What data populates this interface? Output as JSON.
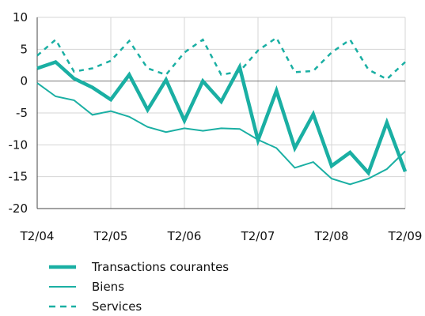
{
  "chart_data": {
    "type": "line",
    "x_tick_labels": [
      "T2/04",
      "T2/05",
      "T2/06",
      "T2/07",
      "T2/08",
      "T2/09"
    ],
    "y_tick_labels": [
      "10",
      "5",
      "0",
      "-5",
      "-10",
      "-15",
      "-20"
    ],
    "ylim": [
      -20,
      10
    ],
    "grid": "vertical-and-horizontal",
    "legend_position": "bottom",
    "color": "#1AAFA3",
    "series": [
      {
        "name": "Transactions courantes",
        "style": "thick-solid",
        "values": [
          2.0,
          3.0,
          0.4,
          -1.0,
          -2.9,
          1.0,
          -4.5,
          0.2,
          -6.2,
          0.0,
          -3.2,
          2.2,
          -9.3,
          -1.5,
          -10.5,
          -5.2,
          -13.3,
          -11.2,
          -14.4,
          -6.5,
          -14.2
        ]
      },
      {
        "name": "Biens",
        "style": "thin-solid",
        "values": [
          -0.3,
          -2.4,
          -3.0,
          -5.3,
          -4.7,
          -5.6,
          -7.2,
          -8.0,
          -7.4,
          -7.8,
          -7.4,
          -7.5,
          -9.2,
          -10.5,
          -13.6,
          -12.7,
          -15.3,
          -16.2,
          -15.3,
          -13.8,
          -11.0
        ]
      },
      {
        "name": "Services",
        "style": "dashed",
        "values": [
          4.0,
          6.5,
          1.5,
          2.0,
          3.2,
          6.3,
          2.0,
          1.0,
          4.5,
          6.5,
          1.0,
          1.5,
          4.8,
          6.8,
          1.4,
          1.6,
          4.5,
          6.5,
          1.8,
          0.3,
          3.0
        ]
      }
    ]
  }
}
